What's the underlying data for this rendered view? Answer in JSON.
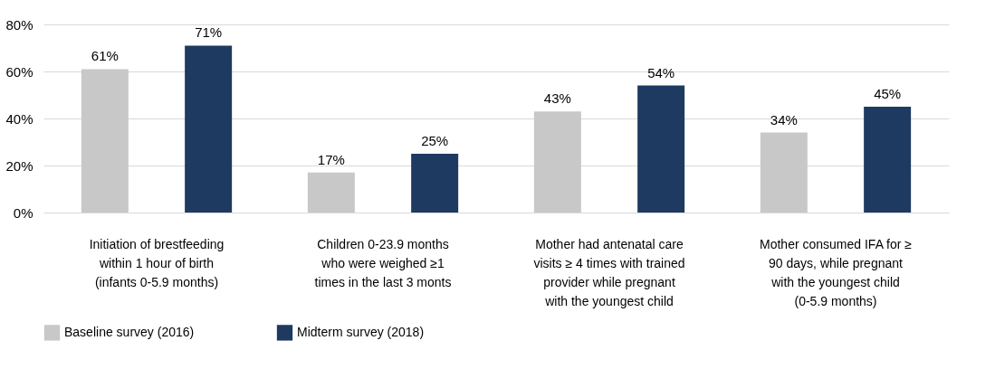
{
  "chart_data": {
    "type": "bar",
    "categories": [
      "Initiation of brestfeeding\nwithin 1 hour of birth\n(infants 0-5.9 months)",
      "Children 0-23.9 months\nwho were weighed ≥1\ntimes in the last 3 monts",
      "Mother had antenatal care\nvisits ≥ 4 times with trained\nprovider while pregnant\nwith the youngest child",
      "Mother consumed IFA for ≥\n90 days, while pregnant\nwith the youngest child\n(0-5.9 months)"
    ],
    "series": [
      {
        "name": "Baseline survey (2016)",
        "color": "#c8c8c8",
        "values": [
          61,
          17,
          43,
          34
        ],
        "value_labels": [
          "61%",
          "17%",
          "43%",
          "34%"
        ]
      },
      {
        "name": "Midterm survey (2018)",
        "color": "#1f3a60",
        "values": [
          71,
          25,
          54,
          45
        ],
        "value_labels": [
          "71%",
          "25%",
          "54%",
          "45%"
        ]
      }
    ],
    "ylim": [
      0,
      80
    ],
    "yticks": [
      {
        "value": 0,
        "label": "0%"
      },
      {
        "value": 20,
        "label": "20%"
      },
      {
        "value": 40,
        "label": "40%"
      },
      {
        "value": 60,
        "label": "60%"
      },
      {
        "value": 80,
        "label": "80%"
      }
    ],
    "grid": "y",
    "legend": "bottom"
  }
}
